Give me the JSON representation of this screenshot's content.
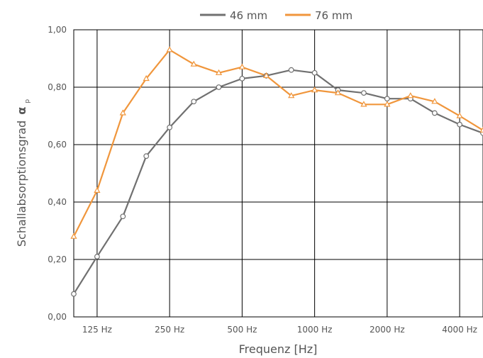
{
  "chart_data": {
    "type": "line",
    "xlabel": "Frequenz [Hz]",
    "ylabel": {
      "text": "Schallabsorptionsgrad",
      "symbol": "α",
      "subscript": "p"
    },
    "x": [
      100,
      125,
      160,
      200,
      250,
      315,
      400,
      500,
      630,
      800,
      1000,
      1250,
      1600,
      2000,
      2500,
      3150,
      4000,
      5000
    ],
    "x_tick_labels": [
      {
        "x": 125,
        "label": "125 Hz"
      },
      {
        "x": 250,
        "label": "250 Hz"
      },
      {
        "x": 500,
        "label": "500 Hz"
      },
      {
        "x": 1000,
        "label": "1000 Hz"
      },
      {
        "x": 2000,
        "label": "2000 Hz"
      },
      {
        "x": 4000,
        "label": "4000 Hz"
      }
    ],
    "x_scale": "log",
    "xlim": [
      100,
      5000
    ],
    "y_tick_labels": [
      "0,00",
      "0,20",
      "0,40",
      "0,60",
      "0,80",
      "1,00"
    ],
    "y_ticks": [
      0,
      0.2,
      0.4,
      0.6,
      0.8,
      1.0
    ],
    "ylim": [
      0,
      1.0
    ],
    "grid": true,
    "legend_position": "top-center",
    "series": [
      {
        "name": "46 mm",
        "color": "#707070",
        "marker": "circle",
        "values": [
          0.08,
          0.21,
          0.35,
          0.56,
          0.66,
          0.75,
          0.8,
          0.83,
          0.84,
          0.86,
          0.85,
          0.79,
          0.78,
          0.76,
          0.76,
          0.71,
          0.67,
          0.64
        ]
      },
      {
        "name": "76 mm",
        "color": "#f0963c",
        "marker": "triangle",
        "values": [
          0.28,
          0.44,
          0.71,
          0.83,
          0.93,
          0.88,
          0.85,
          0.87,
          0.84,
          0.77,
          0.79,
          0.78,
          0.74,
          0.74,
          0.77,
          0.75,
          0.7,
          0.65
        ]
      }
    ]
  }
}
